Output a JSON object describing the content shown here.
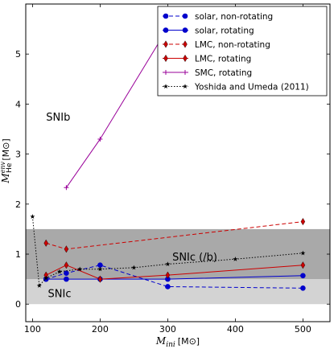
{
  "chart_data": {
    "type": "line",
    "xlabel_main": "M",
    "xlabel_sub": "ini",
    "xlabel_unit": "[M⊙]",
    "ylabel_main": "M",
    "ylabel_sub": "He",
    "ylabel_sup": "env",
    "ylabel_unit": "[M⊙]",
    "xlim": [
      90,
      540
    ],
    "ylim": [
      -0.35,
      6.0
    ],
    "xticks": [
      100,
      200,
      300,
      400,
      500
    ],
    "yticks": [
      0,
      1,
      2,
      3,
      4,
      5
    ],
    "regions": [
      {
        "label": "SNIc",
        "y0": 0.0,
        "y1": 0.5,
        "color": "#d3d3d3",
        "label_x": 140,
        "label_y": 0.22
      },
      {
        "label": "SNIc (/b)",
        "y0": 0.5,
        "y1": 1.5,
        "color": "#a9a9a9",
        "label_x": 340,
        "label_y": 0.95
      }
    ],
    "annotations": [
      {
        "text": "SNIb",
        "x": 138,
        "y": 3.75
      }
    ],
    "series": [
      {
        "name": "solar, non-rotating",
        "color": "#0000cc",
        "dash": "5,3",
        "marker": "circle",
        "x": [
          120,
          150,
          200,
          300,
          500
        ],
        "y": [
          0.5,
          0.62,
          0.78,
          0.35,
          0.32
        ]
      },
      {
        "name": "solar, rotating",
        "color": "#0000cc",
        "dash": "",
        "marker": "circle",
        "x": [
          120,
          150,
          200,
          300,
          500
        ],
        "y": [
          0.5,
          0.5,
          0.5,
          0.5,
          0.57
        ]
      },
      {
        "name": "LMC, non-rotating",
        "color": "#cc0000",
        "dash": "5,3",
        "marker": "diamond",
        "x": [
          120,
          150,
          500
        ],
        "y": [
          1.22,
          1.1,
          1.65
        ]
      },
      {
        "name": "LMC, rotating",
        "color": "#cc0000",
        "dash": "",
        "marker": "diamond",
        "x": [
          120,
          150,
          200,
          300,
          500
        ],
        "y": [
          0.58,
          0.78,
          0.5,
          0.58,
          0.78
        ]
      },
      {
        "name": "SMC, rotating",
        "color": "#990099",
        "dash": "",
        "marker": "plus",
        "x": [
          150,
          200,
          300
        ],
        "y": [
          2.33,
          3.3,
          5.52
        ]
      },
      {
        "name": "Yoshida and Umeda (2011)",
        "color": "#000000",
        "dash": "1.5,2",
        "marker": "star",
        "x": [
          100,
          110,
          120,
          140,
          170,
          200,
          250,
          300,
          400,
          500
        ],
        "y": [
          1.75,
          0.37,
          0.52,
          0.65,
          0.7,
          0.7,
          0.73,
          0.8,
          0.9,
          1.02
        ]
      }
    ]
  }
}
